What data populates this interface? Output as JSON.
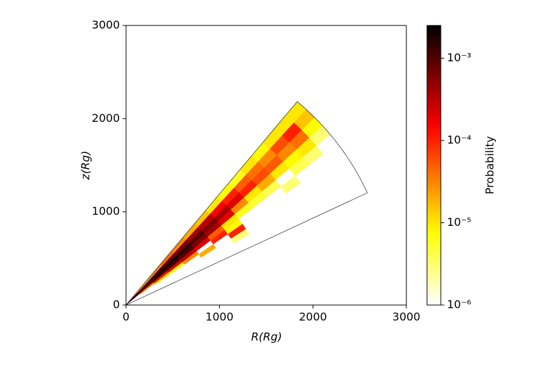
{
  "chart_data": {
    "type": "polar_histogram2d",
    "x_label": "R(Rg)",
    "y_label": "z(Rg)",
    "colorbar_label": "Probability",
    "xlim": [
      0,
      3000
    ],
    "ylim": [
      0,
      3000
    ],
    "xticks": [
      0,
      1000,
      2000,
      3000
    ],
    "yticks": [
      0,
      1000,
      2000,
      3000
    ],
    "r_bins": [
      0,
      190,
      380,
      570,
      760,
      950,
      1140,
      1330,
      1520,
      1710,
      1900,
      2090,
      2280,
      2470,
      2660,
      2850
    ],
    "theta_bins": [
      25,
      27.5,
      30,
      32.5,
      35,
      37.5,
      40,
      42.5,
      45,
      47.5,
      50
    ],
    "values": [
      [
        null,
        null,
        null,
        null,
        null,
        null,
        0.001,
        0.002,
        0.001,
        null
      ],
      [
        null,
        null,
        null,
        null,
        null,
        3e-05,
        0.0005,
        0.0015,
        0.0008,
        2e-05
      ],
      [
        null,
        null,
        null,
        null,
        1e-05,
        0.0001,
        0.001,
        0.002,
        0.001,
        3e-05
      ],
      [
        null,
        null,
        null,
        null,
        8e-06,
        0.0002,
        0.0012,
        0.002,
        0.0008,
        4e-05
      ],
      [
        null,
        null,
        null,
        null,
        3e-05,
        0.0003,
        0.001,
        0.0015,
        0.0006,
        3e-05
      ],
      [
        null,
        null,
        null,
        2e-05,
        null,
        0.0002,
        0.0006,
        0.001,
        0.0004,
        2e-05
      ],
      [
        null,
        null,
        null,
        null,
        0.0001,
        5e-05,
        0.0004,
        0.0006,
        0.0003,
        1.5e-05
      ],
      [
        null,
        null,
        3e-06,
        0.0001,
        8e-06,
        1e-05,
        0.0002,
        0.0004,
        0.00015,
        1e-05
      ],
      [
        null,
        null,
        null,
        null,
        null,
        6e-06,
        3e-05,
        0.0002,
        0.0001,
        8e-06
      ],
      [
        null,
        null,
        null,
        null,
        null,
        5e-06,
        1e-05,
        0.0001,
        5e-05,
        6e-06
      ],
      [
        null,
        null,
        null,
        null,
        null,
        4e-06,
        2e-05,
        6e-05,
        4e-05,
        1e-05
      ],
      [
        null,
        null,
        null,
        null,
        3e-06,
        null,
        1e-05,
        5e-05,
        3e-05,
        8e-06
      ],
      [
        null,
        null,
        null,
        null,
        null,
        4e-06,
        8e-06,
        3e-05,
        6e-05,
        1e-05
      ],
      [
        null,
        null,
        null,
        null,
        null,
        3e-06,
        1e-05,
        4e-05,
        0.0001,
        1e-05
      ],
      [
        null,
        null,
        null,
        null,
        null,
        null,
        3e-06,
        8e-06,
        1.5e-05,
        1e-05
      ]
    ],
    "colormap": "hot_r",
    "color_scale": "log",
    "clim": [
      1e-06,
      0.0025
    ],
    "cticks": [
      {
        "value": 1e-06,
        "label": "10⁻⁶"
      },
      {
        "value": 1e-05,
        "label": "10⁻⁵"
      },
      {
        "value": 0.0001,
        "label": "10⁻⁴"
      },
      {
        "value": 0.001,
        "label": "10⁻³"
      }
    ]
  }
}
